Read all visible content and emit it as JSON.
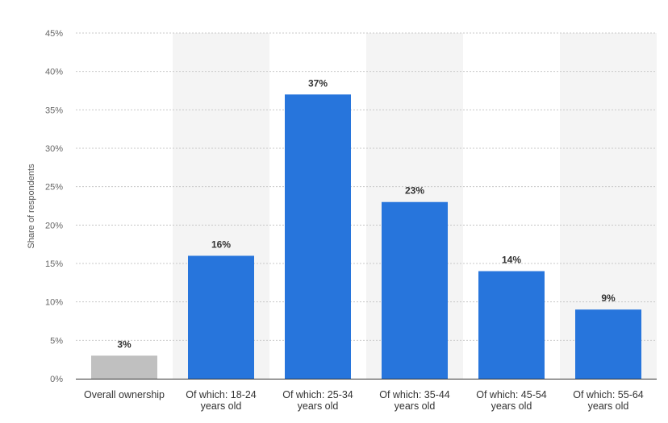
{
  "chart_data": {
    "type": "bar",
    "title": "",
    "xlabel": "",
    "ylabel": "Share of respondents",
    "ylim": [
      0,
      45
    ],
    "yticks": [
      0,
      5,
      10,
      15,
      20,
      25,
      30,
      35,
      40,
      45
    ],
    "ytick_labels": [
      "0%",
      "5%",
      "10%",
      "15%",
      "20%",
      "25%",
      "30%",
      "35%",
      "40%",
      "45%"
    ],
    "grid": true,
    "categories": [
      [
        "Overall ownership"
      ],
      [
        "Of which: 18-24",
        "years old"
      ],
      [
        "Of which: 25-34",
        "years old"
      ],
      [
        "Of which: 35-44",
        "years old"
      ],
      [
        "Of which: 45-54",
        "years old"
      ],
      [
        "Of which: 55-64",
        "years old"
      ]
    ],
    "values": [
      3,
      16,
      37,
      23,
      14,
      9
    ],
    "value_labels": [
      "3%",
      "16%",
      "37%",
      "23%",
      "14%",
      "9%"
    ],
    "bar_colors": [
      "#c0c0c0",
      "#2775dc",
      "#2775dc",
      "#2775dc",
      "#2775dc",
      "#2775dc"
    ],
    "band_color": "#f4f4f4",
    "grid_color": "#c8c8c8",
    "axis_color": "#333333"
  }
}
